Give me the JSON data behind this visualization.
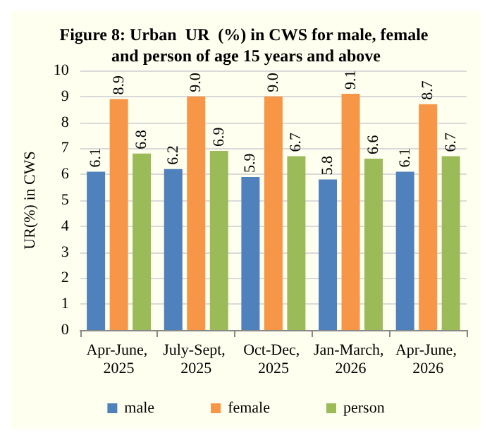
{
  "chart_data": {
    "type": "bar",
    "title": "Figure 8: Urban  UR  (%) in CWS for male, female and person of age 15 years and above",
    "ylabel": "UR(%) in CWS",
    "categories": [
      "Apr-June, 2025",
      "July-Sept, 2025",
      "Oct-Dec, 2025",
      "Jan-March, 2026",
      "Apr-June, 2026"
    ],
    "series": [
      {
        "name": "male",
        "color": "#4f81bd",
        "values": [
          6.1,
          6.2,
          5.9,
          5.8,
          6.1
        ],
        "value_labels": [
          "6.1",
          "6.2",
          "5.9",
          "5.8",
          "6.1"
        ]
      },
      {
        "name": "female",
        "color": "#f79646",
        "values": [
          8.9,
          9.0,
          9.0,
          9.1,
          8.7
        ],
        "value_labels": [
          "8.9",
          "9.0",
          "9.0",
          "9.1",
          "8.7"
        ]
      },
      {
        "name": "person",
        "color": "#9bbb59",
        "values": [
          6.8,
          6.9,
          6.7,
          6.6,
          6.7
        ],
        "value_labels": [
          "6.8",
          "6.9",
          "6.7",
          "6.6",
          "6.7"
        ]
      }
    ],
    "ylim": [
      0,
      10
    ],
    "yticks": [
      0,
      1,
      2,
      3,
      4,
      5,
      6,
      7,
      8,
      9,
      10
    ],
    "grid": "y",
    "legend": "bottom"
  }
}
